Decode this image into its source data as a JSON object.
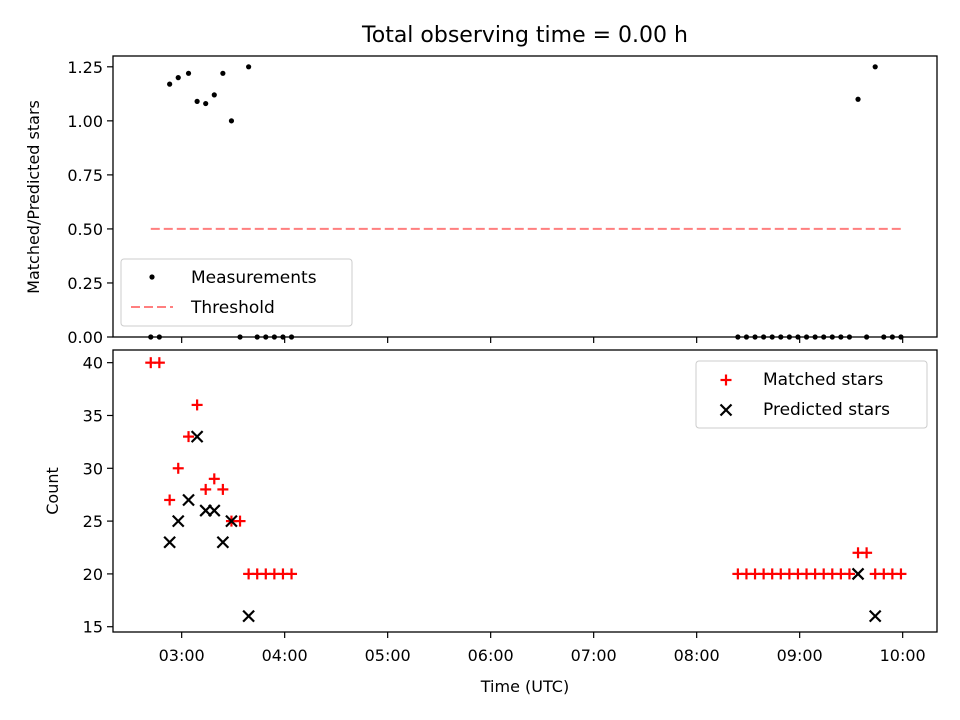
{
  "title": "Total observing time = 0.00 h",
  "colors": {
    "measurement": "#000000",
    "threshold": "#ff7f7f",
    "matched": "#ff0000",
    "predicted": "#000000"
  },
  "chart_data": [
    {
      "type": "scatter",
      "ylabel": "Matched/Predicted stars",
      "ylim": [
        0,
        1.3
      ],
      "xlim": [
        "02:20",
        "10:20"
      ],
      "yticks": [
        0,
        0.25,
        0.5,
        0.75,
        1.0,
        1.25
      ],
      "ytick_labels": [
        "0.00",
        "0.25",
        "0.50",
        "0.75",
        "1.00",
        "1.25"
      ],
      "legend_placement": "lower-left",
      "series": [
        {
          "name": "Measurements",
          "marker": "dot",
          "x": [
            "02:42",
            "02:47",
            "02:53",
            "02:58",
            "03:04",
            "03:09",
            "03:14",
            "03:19",
            "03:24",
            "03:29",
            "03:34",
            "03:39",
            "03:44",
            "03:49",
            "03:54",
            "03:59",
            "04:04",
            "08:24",
            "08:29",
            "08:34",
            "08:39",
            "08:44",
            "08:49",
            "08:54",
            "08:59",
            "09:04",
            "09:09",
            "09:14",
            "09:19",
            "09:24",
            "09:29",
            "09:34",
            "09:39",
            "09:44",
            "09:49",
            "09:54",
            "09:59"
          ],
          "y": [
            0,
            0,
            1.17,
            1.2,
            1.22,
            1.09,
            1.08,
            1.12,
            1.22,
            1.0,
            0,
            1.25,
            0,
            0,
            0,
            0,
            0,
            0,
            0,
            0,
            0,
            0,
            0,
            0,
            0,
            0,
            0,
            0,
            0,
            0,
            0,
            1.1,
            0,
            1.25,
            0,
            0,
            0
          ]
        },
        {
          "name": "Threshold",
          "style": "dashed",
          "x": [
            "02:42",
            "09:59"
          ],
          "y": [
            0.5,
            0.5
          ]
        }
      ]
    },
    {
      "type": "scatter",
      "xlabel": "Time (UTC)",
      "ylabel": "Count",
      "ylim": [
        14.5,
        41.2
      ],
      "xlim": [
        "02:20",
        "10:20"
      ],
      "yticks": [
        15,
        20,
        25,
        30,
        35,
        40
      ],
      "xticks": [
        "03:00",
        "04:00",
        "05:00",
        "06:00",
        "07:00",
        "08:00",
        "09:00",
        "10:00"
      ],
      "legend_placement": "top-right",
      "series": [
        {
          "name": "Matched stars",
          "marker": "plus",
          "x": [
            "02:42",
            "02:47",
            "02:53",
            "02:58",
            "03:04",
            "03:09",
            "03:14",
            "03:19",
            "03:24",
            "03:29",
            "03:34",
            "03:39",
            "03:44",
            "03:49",
            "03:54",
            "03:59",
            "04:04",
            "08:24",
            "08:29",
            "08:34",
            "08:39",
            "08:44",
            "08:49",
            "08:54",
            "08:59",
            "09:04",
            "09:09",
            "09:14",
            "09:19",
            "09:24",
            "09:29",
            "09:34",
            "09:39",
            "09:44",
            "09:49",
            "09:54",
            "09:59"
          ],
          "y": [
            40,
            40,
            27,
            30,
            33,
            36,
            28,
            29,
            28,
            25,
            25,
            20,
            20,
            20,
            20,
            20,
            20,
            20,
            20,
            20,
            20,
            20,
            20,
            20,
            20,
            20,
            20,
            20,
            20,
            20,
            20,
            22,
            22,
            20,
            20,
            20,
            20
          ]
        },
        {
          "name": "Predicted stars",
          "marker": "x",
          "x": [
            "02:53",
            "02:58",
            "03:04",
            "03:09",
            "03:14",
            "03:19",
            "03:24",
            "03:29",
            "03:39",
            "09:34",
            "09:44"
          ],
          "y": [
            23,
            25,
            27,
            33,
            26,
            26,
            23,
            25,
            16,
            20,
            16
          ]
        }
      ]
    }
  ]
}
